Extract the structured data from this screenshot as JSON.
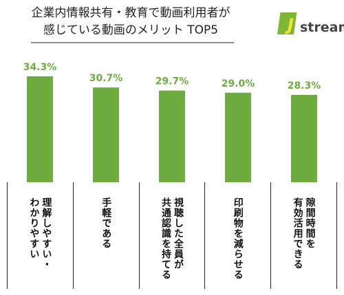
{
  "chart_data": {
    "type": "bar",
    "title": [
      "企業内情報共有・教育で動画利用者が",
      "感じている動画のメリット TOP5"
    ],
    "logo_mark": "J",
    "logo_text": "stream",
    "categories": [
      [
        "理解しやすい・",
        "わかりやすい"
      ],
      [
        "手軽である"
      ],
      [
        "視聴した全員が",
        "共通認識を持てる"
      ],
      [
        "印刷物を減らせる"
      ],
      [
        "隙間時間を",
        "有効活用できる"
      ]
    ],
    "values": [
      34.3,
      30.7,
      29.7,
      29.0,
      28.3
    ],
    "value_labels": [
      "34.3%",
      "30.7%",
      "29.7%",
      "29.0%",
      "28.3%"
    ],
    "color": "#6fac3f"
  }
}
